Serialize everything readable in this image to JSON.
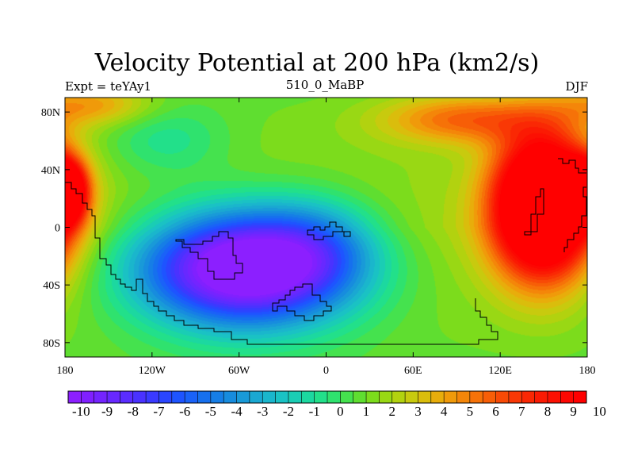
{
  "chart_data": {
    "type": "heatmap",
    "title": "Velocity Potential at 200 hPa (km2/s)",
    "left_string": "Expt = teYAy1",
    "center_string": "510_0_MaBP",
    "right_string": "DJF",
    "x_ticks": [
      "180",
      "120W",
      "60W",
      "0",
      "60E",
      "120E",
      "180"
    ],
    "x_tick_values": [
      -180,
      -120,
      -60,
      0,
      60,
      120,
      180
    ],
    "y_ticks": [
      "80N",
      "40N",
      "0",
      "40S",
      "80S"
    ],
    "y_tick_values": [
      80,
      40,
      0,
      -40,
      -80
    ],
    "xlim": [
      -180,
      180
    ],
    "ylim": [
      -90,
      90
    ],
    "colorbar": {
      "labels": [
        "-10",
        "-9",
        "-8",
        "-7",
        "-6",
        "-5",
        "-4",
        "-3",
        "-2",
        "-1",
        "0",
        "1",
        "2",
        "3",
        "4",
        "5",
        "6",
        "7",
        "8",
        "9",
        "10"
      ],
      "levels": [
        -10,
        -9.5,
        -9,
        -8.5,
        -8,
        -7.5,
        -7,
        -6.5,
        -6,
        -5.5,
        -5,
        -4.5,
        -4,
        -3.5,
        -3,
        -2.5,
        -2,
        -1.5,
        -1,
        -0.5,
        0,
        0.5,
        1,
        1.5,
        2,
        2.5,
        3,
        3.5,
        4,
        4.5,
        5,
        5.5,
        6,
        6.5,
        7,
        7.5,
        8,
        8.5,
        9,
        9.5,
        10
      ],
      "colors": [
        "#8c1fff",
        "#8020ff",
        "#7424ff",
        "#6828ff",
        "#5a2dff",
        "#4a32ff",
        "#3a3aff",
        "#2a46ff",
        "#1e54ff",
        "#1a62f8",
        "#1670ee",
        "#167ee6",
        "#178cde",
        "#199ad8",
        "#1aa8d2",
        "#1ab6cc",
        "#1ac2c4",
        "#1acdb4",
        "#1cd8a0",
        "#22e08a",
        "#2fe26e",
        "#45e24e",
        "#5fde30",
        "#7cdc1c",
        "#99d814",
        "#b2d20f",
        "#c8ca0e",
        "#dabd0c",
        "#e8ad0b",
        "#f09a0a",
        "#f48609",
        "#f67208",
        "#f75e07",
        "#f84a06",
        "#f93805",
        "#fa2804",
        "#fb1a03",
        "#fc1002",
        "#fd0702",
        "#ff0000"
      ]
    },
    "field_centers": [
      {
        "name": "negative-center-pacific-atlantic",
        "lon": -55,
        "lat": -28,
        "value": -9.8
      },
      {
        "name": "positive-center-asia",
        "lon": 150,
        "lat": 20,
        "value": 10
      },
      {
        "name": "positive-center-dateline-west",
        "lon": -180,
        "lat": 25,
        "value": 9.5
      }
    ]
  }
}
